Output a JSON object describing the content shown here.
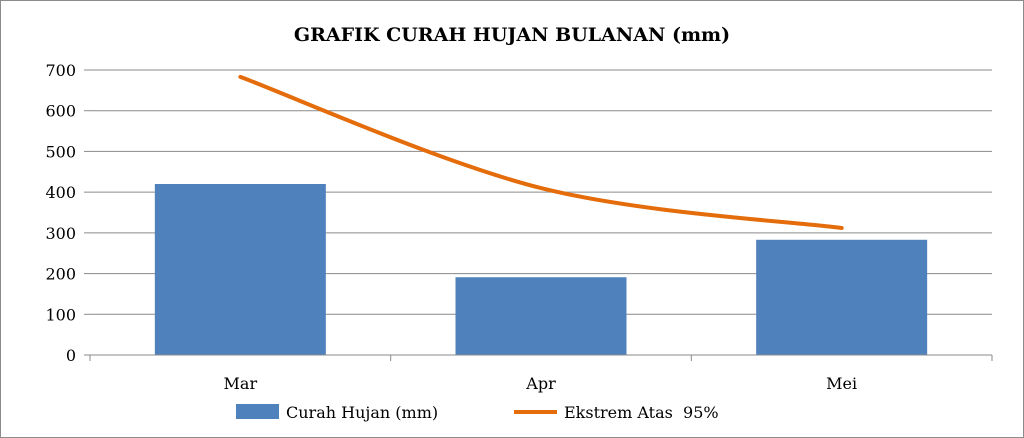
{
  "chart_data": {
    "type": "bar",
    "title": "GRAFIK CURAH HUJAN BULANAN (mm)",
    "categories": [
      "Mar",
      "Apr",
      "Mei"
    ],
    "ylim": [
      0,
      700
    ],
    "yticks": [
      0,
      100,
      200,
      300,
      400,
      500,
      600,
      700
    ],
    "grid": true,
    "legend": "bottom",
    "series": [
      {
        "name": "Curah Hujan (mm)",
        "kind": "bar",
        "color": "#4f81bd",
        "values": [
          420,
          191,
          283
        ]
      },
      {
        "name": "Ekstrem Atas  95%",
        "kind": "line",
        "color": "#e46c0a",
        "values": [
          683,
          410,
          312
        ]
      }
    ]
  }
}
